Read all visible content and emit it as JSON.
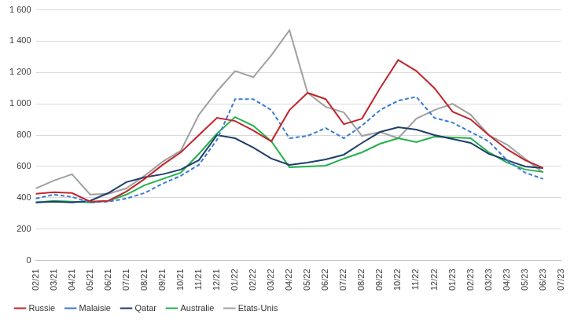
{
  "chart_data": {
    "type": "line",
    "categories": [
      "02/21",
      "03/21",
      "04/21",
      "05/21",
      "06/21",
      "07/21",
      "08/21",
      "09/21",
      "10/21",
      "11/21",
      "12/21",
      "01/22",
      "02/22",
      "03/22",
      "04/22",
      "05/22",
      "06/22",
      "07/22",
      "08/22",
      "09/22",
      "10/22",
      "11/22",
      "12/22",
      "01/23",
      "02/23",
      "03/23",
      "04/23",
      "05/23",
      "06/23",
      "07/23"
    ],
    "series": [
      {
        "name": "Russie",
        "color": "#c0262d",
        "line_style": "solid",
        "values": [
          425,
          435,
          430,
          375,
          380,
          440,
          520,
          610,
          690,
          800,
          910,
          890,
          830,
          760,
          960,
          1070,
          1030,
          870,
          905,
          1100,
          1280,
          1210,
          1100,
          950,
          900,
          800,
          710,
          640,
          590,
          null
        ]
      },
      {
        "name": "Malaisie",
        "color": "#3a7bd5",
        "line_style": "dashed",
        "values": [
          395,
          420,
          405,
          370,
          375,
          395,
          430,
          490,
          540,
          610,
          770,
          1030,
          1030,
          960,
          780,
          795,
          845,
          780,
          860,
          960,
          1020,
          1045,
          910,
          880,
          820,
          760,
          640,
          560,
          520,
          null
        ]
      },
      {
        "name": "Qatar",
        "color": "#1f3d6b",
        "line_style": "solid",
        "values": [
          370,
          375,
          370,
          380,
          430,
          500,
          530,
          550,
          580,
          640,
          800,
          780,
          720,
          650,
          610,
          625,
          645,
          675,
          750,
          820,
          850,
          835,
          800,
          775,
          750,
          680,
          640,
          600,
          590,
          null
        ]
      },
      {
        "name": "Australie",
        "color": "#22b14c",
        "line_style": "solid",
        "values": [
          370,
          380,
          375,
          370,
          380,
          420,
          480,
          520,
          560,
          680,
          810,
          915,
          860,
          760,
          595,
          600,
          605,
          650,
          690,
          745,
          780,
          755,
          790,
          785,
          780,
          690,
          625,
          580,
          565,
          null
        ]
      },
      {
        "name": "Etats-Unis",
        "color": "#a0a0a0",
        "line_style": "solid",
        "values": [
          460,
          510,
          550,
          420,
          425,
          460,
          540,
          630,
          700,
          930,
          1080,
          1210,
          1170,
          1310,
          1470,
          1070,
          980,
          945,
          795,
          820,
          780,
          905,
          960,
          1000,
          930,
          800,
          740,
          650,
          560,
          null
        ]
      }
    ],
    "ylim": [
      0,
      1600
    ],
    "yticks": [
      0,
      200,
      400,
      600,
      800,
      {
        "value": 1000,
        "label": "1 000"
      },
      {
        "value": 1200,
        "label": "1 200"
      },
      {
        "value": 1400,
        "label": "1 400"
      },
      {
        "value": 1600,
        "label": "1 600"
      }
    ],
    "grid": true,
    "legend": "bottom"
  }
}
